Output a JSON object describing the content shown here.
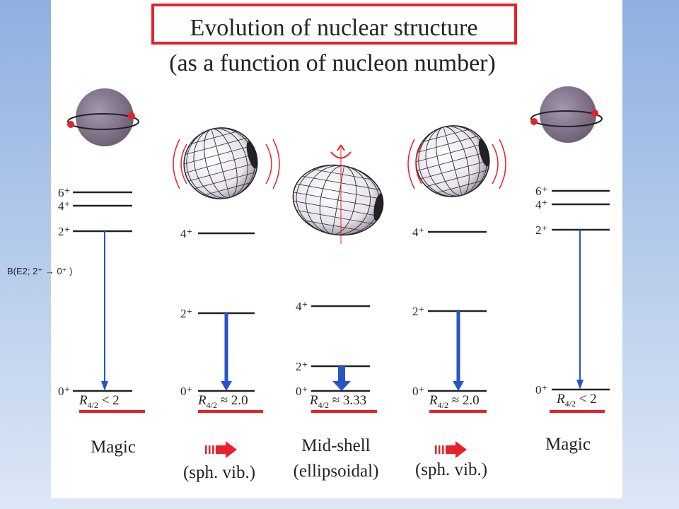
{
  "header": {
    "title": "Evolution of nuclear structure",
    "subtitle": "(as a function of nucleon number)"
  },
  "side_label": "B(E2; 2⁺ → 0⁺ )",
  "columns": [
    {
      "levels": [
        "6⁺",
        "4⁺",
        "2⁺",
        "0⁺"
      ],
      "ratio": {
        "symbol": "R",
        "subscript": "4/2",
        "relation": " < 2"
      },
      "label": [
        "Magic"
      ]
    },
    {
      "levels": [
        "4⁺",
        "2⁺",
        "0⁺"
      ],
      "ratio": {
        "symbol": "R",
        "subscript": "4/2",
        "relation": " ≈ 2.0"
      },
      "label": [
        "(sph. vib.)"
      ]
    },
    {
      "levels": [
        "4⁺",
        "2⁺",
        "0⁺"
      ],
      "ratio": {
        "symbol": "R",
        "subscript": "4/2",
        "relation": " ≈ 3.33"
      },
      "label": [
        "Mid-shell",
        "(ellipsoidal)"
      ]
    },
    {
      "levels": [
        "4⁺",
        "2⁺",
        "0⁺"
      ],
      "ratio": {
        "symbol": "R",
        "subscript": "4/2",
        "relation": " ≈ 2.0"
      },
      "label": [
        "(sph. vib.)"
      ]
    },
    {
      "levels": [
        "6⁺",
        "4⁺",
        "2⁺",
        "0⁺"
      ],
      "ratio": {
        "symbol": "R",
        "subscript": "4/2",
        "relation": " < 2"
      },
      "label": [
        "Magic"
      ]
    }
  ]
}
